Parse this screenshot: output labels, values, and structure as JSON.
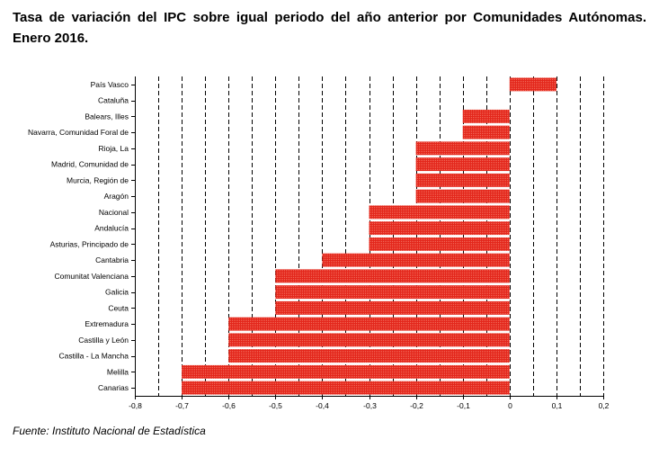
{
  "title": "Tasa de variación del IPC sobre igual periodo del año anterior por Comunidades Autónomas. Enero 2016.",
  "source": "Fuente: Instituto Nacional de Estadística",
  "colors": {
    "bar": "#e3261b",
    "bar_pattern": "#f26a5a",
    "grid": "#000000",
    "axis": "#000000"
  },
  "chart_data": {
    "type": "bar",
    "orientation": "horizontal",
    "title": "",
    "xlabel": "",
    "ylabel": "",
    "xlim": [
      -0.8,
      0.2
    ],
    "tick_step": 0.1,
    "grid": true,
    "grid_style": "dashed vertical",
    "x_ticks": [
      "-0,8",
      "-0,7",
      "-0,6",
      "-0,5",
      "-0,4",
      "-0,3",
      "-0,2",
      "-0,1",
      "0",
      "0,1",
      "0,2"
    ],
    "categories": [
      "País Vasco",
      "Cataluña",
      "Balears, Illes",
      "Navarra, Comunidad Foral de",
      "Rioja, La",
      "Madrid, Comunidad de",
      "Murcia, Región de",
      "Aragón",
      "Nacional",
      "Andalucía",
      "Asturias, Principado de",
      "Cantabria",
      "Comunitat Valenciana",
      "Galicia",
      "Ceuta",
      "Extremadura",
      "Castilla y León",
      "Castilla - La Mancha",
      "Melilla",
      "Canarias"
    ],
    "values": [
      0.1,
      0.0,
      -0.1,
      -0.1,
      -0.2,
      -0.2,
      -0.2,
      -0.2,
      -0.3,
      -0.3,
      -0.3,
      -0.4,
      -0.5,
      -0.5,
      -0.5,
      -0.6,
      -0.6,
      -0.6,
      -0.7,
      -0.7
    ]
  }
}
